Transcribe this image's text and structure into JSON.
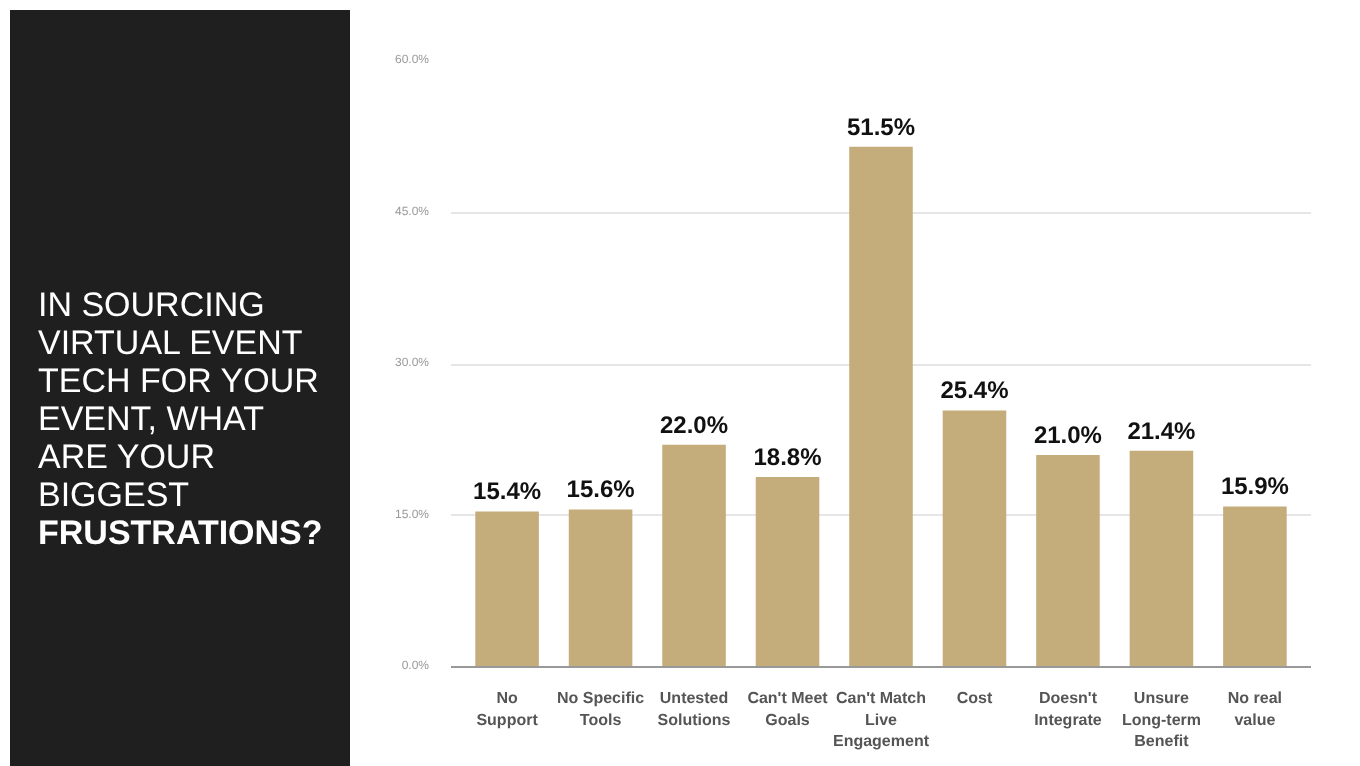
{
  "chart_data": {
    "type": "bar",
    "title": "IN SOURCING VIRTUAL EVENT TECH FOR YOUR EVENT, WHAT ARE YOUR BIGGEST FRUSTRATIONS?",
    "categories": [
      "No\nSupport",
      "No Specific\nTools",
      "Untested\nSolutions",
      "Can't Meet\nGoals",
      "Can't Match\nLive\nEngagement",
      "Cost",
      "Doesn't\nIntegrate",
      "Unsure\nLong-term\nBenefit",
      "No real\nvalue"
    ],
    "values": [
      15.4,
      15.6,
      22.0,
      18.8,
      51.5,
      25.4,
      21.0,
      21.4,
      15.9
    ],
    "value_labels": [
      "15.4%",
      "15.6%",
      "22.0%",
      "18.8%",
      "51.5%",
      "25.4%",
      "21.0%",
      "21.4%",
      "15.9%"
    ],
    "color": "#c4ad7b",
    "ylim": [
      0,
      60
    ],
    "yticks": [
      {
        "value": 0,
        "label": "0.0%"
      },
      {
        "value": 15,
        "label": "15.0%"
      },
      {
        "value": 30,
        "label": "30.0%"
      },
      {
        "value": 45,
        "label": "45.0%"
      },
      {
        "value": 60,
        "label": "60.0%"
      }
    ],
    "grid": "y"
  }
}
